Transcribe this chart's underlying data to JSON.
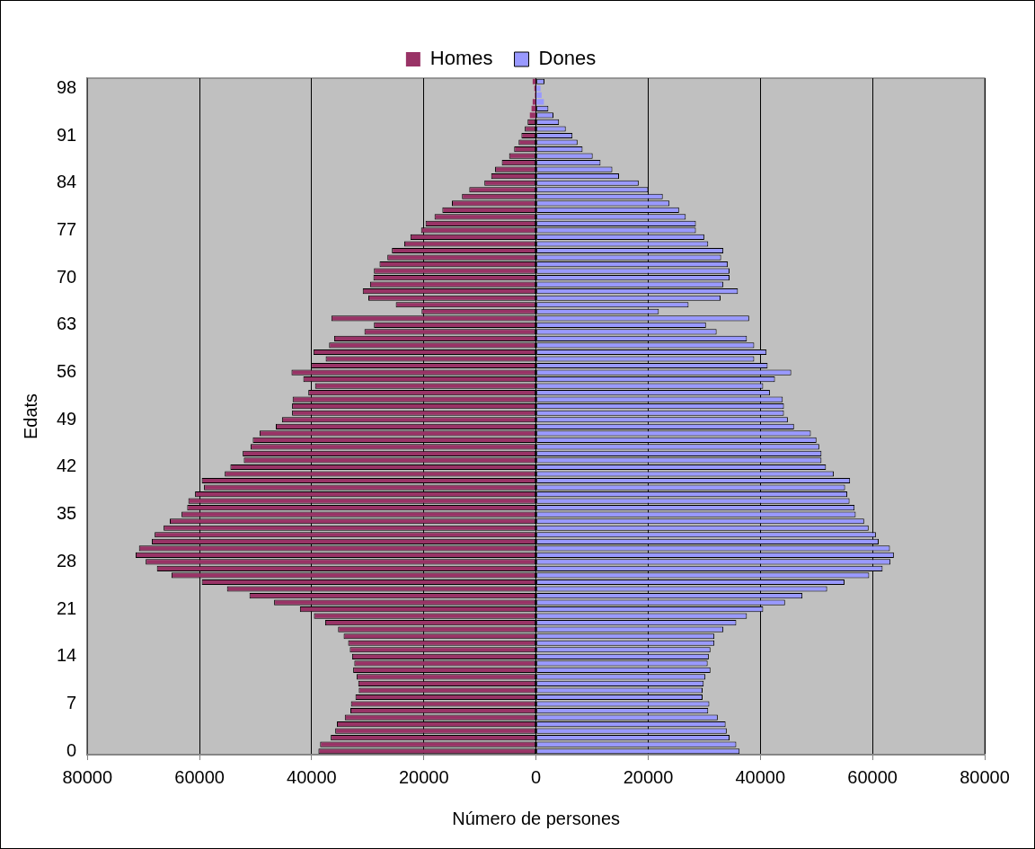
{
  "chart_data": {
    "type": "bar",
    "orientation": "horizontal",
    "stacked": true,
    "xlabel": "Número de persones",
    "ylabel": "Edats",
    "categories": [
      null,
      "98",
      null,
      null,
      null,
      null,
      null,
      null,
      "91",
      null,
      null,
      null,
      null,
      null,
      null,
      "84",
      null,
      null,
      null,
      null,
      null,
      null,
      "77",
      null,
      null,
      null,
      null,
      null,
      null,
      "70",
      null,
      null,
      null,
      null,
      null,
      null,
      "63",
      null,
      null,
      null,
      null,
      null,
      null,
      "56",
      null,
      null,
      null,
      null,
      null,
      null,
      "49",
      null,
      null,
      null,
      null,
      null,
      null,
      "42",
      null,
      null,
      null,
      null,
      null,
      null,
      "35",
      null,
      null,
      null,
      null,
      null,
      null,
      "28",
      null,
      null,
      null,
      null,
      null,
      null,
      "21",
      null,
      null,
      null,
      null,
      null,
      null,
      "14",
      null,
      null,
      null,
      null,
      null,
      null,
      "7",
      null,
      null,
      null,
      null,
      null,
      null,
      "0"
    ],
    "series": [
      {
        "name": "Homes",
        "color": "#993366",
        "values": [
          -600,
          -300,
          -200,
          -600,
          -800,
          -1100,
          -1500,
          -2000,
          -2600,
          -3100,
          -3900,
          -4800,
          -6100,
          -7300,
          -8000,
          -9200,
          -11900,
          -13200,
          -15000,
          -16700,
          -18100,
          -19700,
          -20500,
          -22400,
          -23500,
          -25700,
          -26500,
          -27900,
          -28900,
          -29000,
          -29600,
          -30900,
          -29900,
          -25000,
          -20400,
          -36500,
          -28900,
          -30600,
          -36000,
          -36900,
          -39700,
          -37500,
          -40100,
          -43600,
          -41500,
          -39400,
          -40600,
          -43400,
          -43500,
          -43500,
          -45300,
          -46400,
          -49300,
          -50500,
          -50900,
          -52300,
          -52100,
          -54500,
          -55500,
          -59600,
          -59200,
          -60800,
          -62000,
          -62200,
          -63200,
          -65300,
          -66400,
          -68000,
          -68500,
          -70800,
          -71400,
          -69600,
          -67600,
          -65000,
          -59600,
          -55100,
          -51100,
          -46700,
          -42100,
          -39600,
          -37600,
          -35300,
          -34300,
          -33500,
          -33200,
          -32800,
          -32400,
          -32600,
          -32000,
          -31700,
          -31600,
          -32200,
          -33000,
          -33100,
          -34100,
          -35500,
          -35800,
          -36600,
          -38500,
          -38800
        ]
      },
      {
        "name": "Dones",
        "color": "#9999ff",
        "values": [
          1500,
          800,
          1000,
          1400,
          2200,
          3100,
          4100,
          5300,
          6500,
          7400,
          8300,
          10100,
          11500,
          13600,
          14800,
          18300,
          20000,
          22600,
          23800,
          25500,
          26700,
          28500,
          28500,
          30000,
          30700,
          33400,
          33000,
          34200,
          34500,
          34500,
          33400,
          36000,
          32900,
          27200,
          21900,
          38000,
          30300,
          32200,
          37600,
          38900,
          41100,
          38900,
          41300,
          45500,
          42600,
          40500,
          41700,
          44000,
          44200,
          44200,
          44900,
          46000,
          49000,
          50000,
          50500,
          50900,
          50900,
          51700,
          53100,
          56000,
          55100,
          55500,
          55900,
          56800,
          57000,
          58500,
          59300,
          60600,
          61100,
          63100,
          63800,
          63200,
          61800,
          59400,
          55000,
          51900,
          47500,
          44400,
          40500,
          37600,
          35700,
          33400,
          31800,
          31800,
          31100,
          30800,
          30600,
          31100,
          30200,
          29900,
          29700,
          29700,
          30900,
          30700,
          32400,
          33800,
          34000,
          34500,
          35700,
          36300
        ]
      }
    ],
    "xlim": [
      -80000,
      80000
    ],
    "xticks": [
      {
        "value": -80000,
        "label": "80000"
      },
      {
        "value": -60000,
        "label": "60000"
      },
      {
        "value": -40000,
        "label": "40000"
      },
      {
        "value": -20000,
        "label": "20000"
      },
      0,
      20000,
      40000,
      60000,
      80000
    ],
    "grid": "x",
    "legend": "top"
  }
}
